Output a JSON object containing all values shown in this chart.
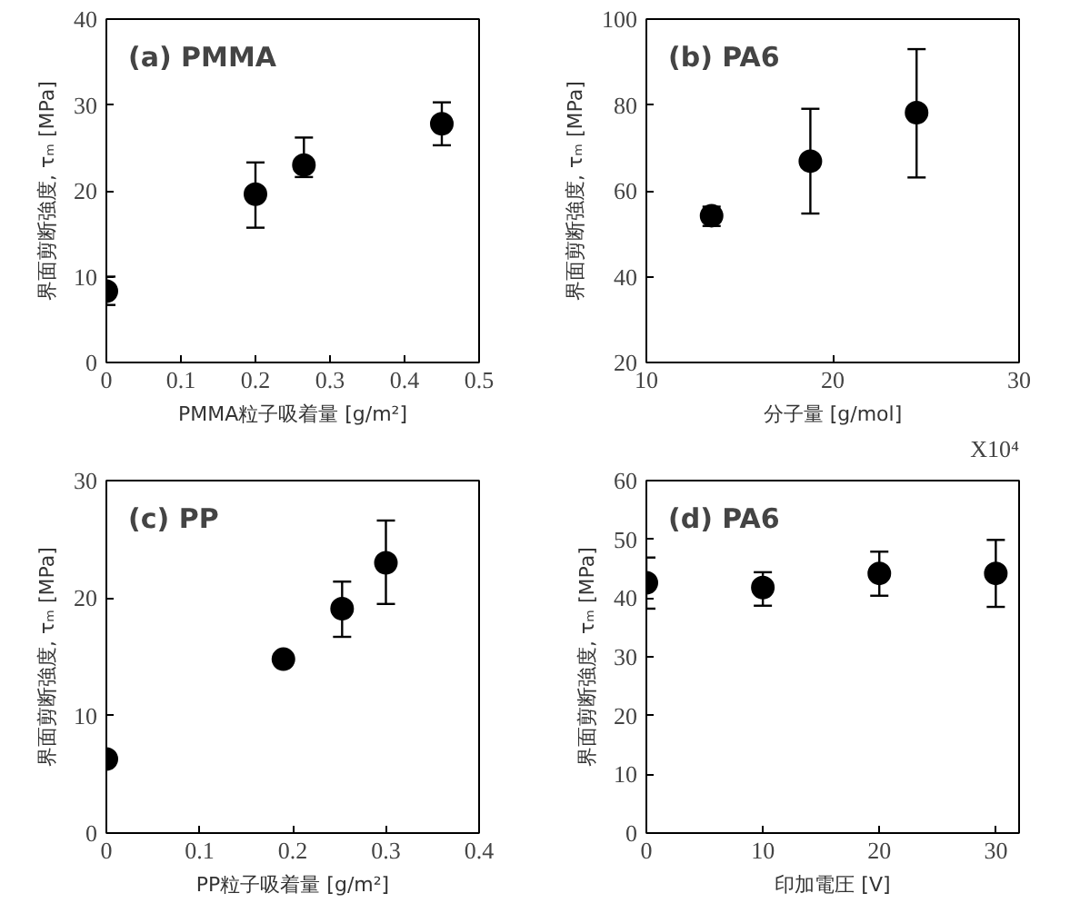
{
  "chart_data": [
    {
      "type": "scatter",
      "title": "(a) PMMA",
      "xlabel": "PMMA粒子吸着量 [g/m²]",
      "ylabel": "界面剪断強度, τₘ [MPa]",
      "xlim": [
        0,
        0.5
      ],
      "xticks": [
        0,
        0.1,
        0.2,
        0.3,
        0.4,
        0.5
      ],
      "ylim": [
        0,
        40
      ],
      "yticks": [
        0,
        10,
        20,
        30,
        40
      ],
      "marker": "circle",
      "grid": false,
      "series": [
        {
          "color": "#000000",
          "x": [
            0,
            0.2,
            0.265,
            0.45
          ],
          "values": [
            8.3,
            19.6,
            23.0,
            27.8
          ],
          "errors": [
            [
              6.7,
              10.0
            ],
            [
              15.7,
              23.3
            ],
            [
              21.6,
              26.2
            ],
            [
              25.3,
              30.3
            ]
          ]
        }
      ]
    },
    {
      "type": "scatter",
      "title": "(b) PA6",
      "xlabel": "分子量 [g/mol]",
      "ylabel": "界面剪断強度, τₘ [MPa]",
      "annotations": [
        "X10⁴"
      ],
      "xlim": [
        10,
        30
      ],
      "xticks": [
        10,
        20,
        30
      ],
      "ylim": [
        20,
        100
      ],
      "yticks": [
        20,
        40,
        60,
        80,
        100
      ],
      "marker": "circle",
      "grid": false,
      "series": [
        {
          "color": "#000000",
          "x": [
            13.5,
            18.8,
            24.5
          ],
          "values": [
            54.2,
            66.9,
            78.2
          ],
          "errors": [
            [
              51.8,
              56.3
            ],
            [
              54.7,
              79.1
            ],
            [
              63.1,
              93.0
            ]
          ]
        }
      ]
    },
    {
      "type": "scatter",
      "title": "(c) PP",
      "xlabel": "PP粒子吸着量 [g/m²]",
      "ylabel": "界面剪断強度, τₘ [MPa]",
      "xlim": [
        0,
        0.4
      ],
      "xticks": [
        0,
        0.1,
        0.2,
        0.3,
        0.4
      ],
      "ylim": [
        0,
        30
      ],
      "yticks": [
        0,
        10,
        20,
        30
      ],
      "marker": "circle",
      "grid": false,
      "series": [
        {
          "color": "#000000",
          "x": [
            0,
            0.19,
            0.253,
            0.3
          ],
          "values": [
            6.3,
            14.8,
            19.1,
            23.0
          ],
          "errors": [
            null,
            null,
            [
              16.7,
              21.4
            ],
            [
              19.5,
              26.6
            ]
          ]
        }
      ]
    },
    {
      "type": "scatter",
      "title": "(d) PA6",
      "xlabel": "印加電圧 [V]",
      "ylabel": "界面剪断強度, τₘ [MPa]",
      "xlim": [
        0,
        32
      ],
      "xticks": [
        0,
        10,
        20,
        30
      ],
      "ylim": [
        0,
        60
      ],
      "yticks": [
        0,
        10,
        20,
        30,
        40,
        50,
        60
      ],
      "marker": "circle",
      "grid": false,
      "series": [
        {
          "color": "#000000",
          "x": [
            0,
            10,
            20,
            30
          ],
          "values": [
            42.6,
            41.8,
            44.2,
            44.2
          ],
          "errors": [
            [
              38.2,
              46.9
            ],
            [
              38.7,
              44.4
            ],
            [
              40.4,
              47.9
            ],
            [
              38.5,
              49.9
            ]
          ]
        }
      ]
    }
  ]
}
